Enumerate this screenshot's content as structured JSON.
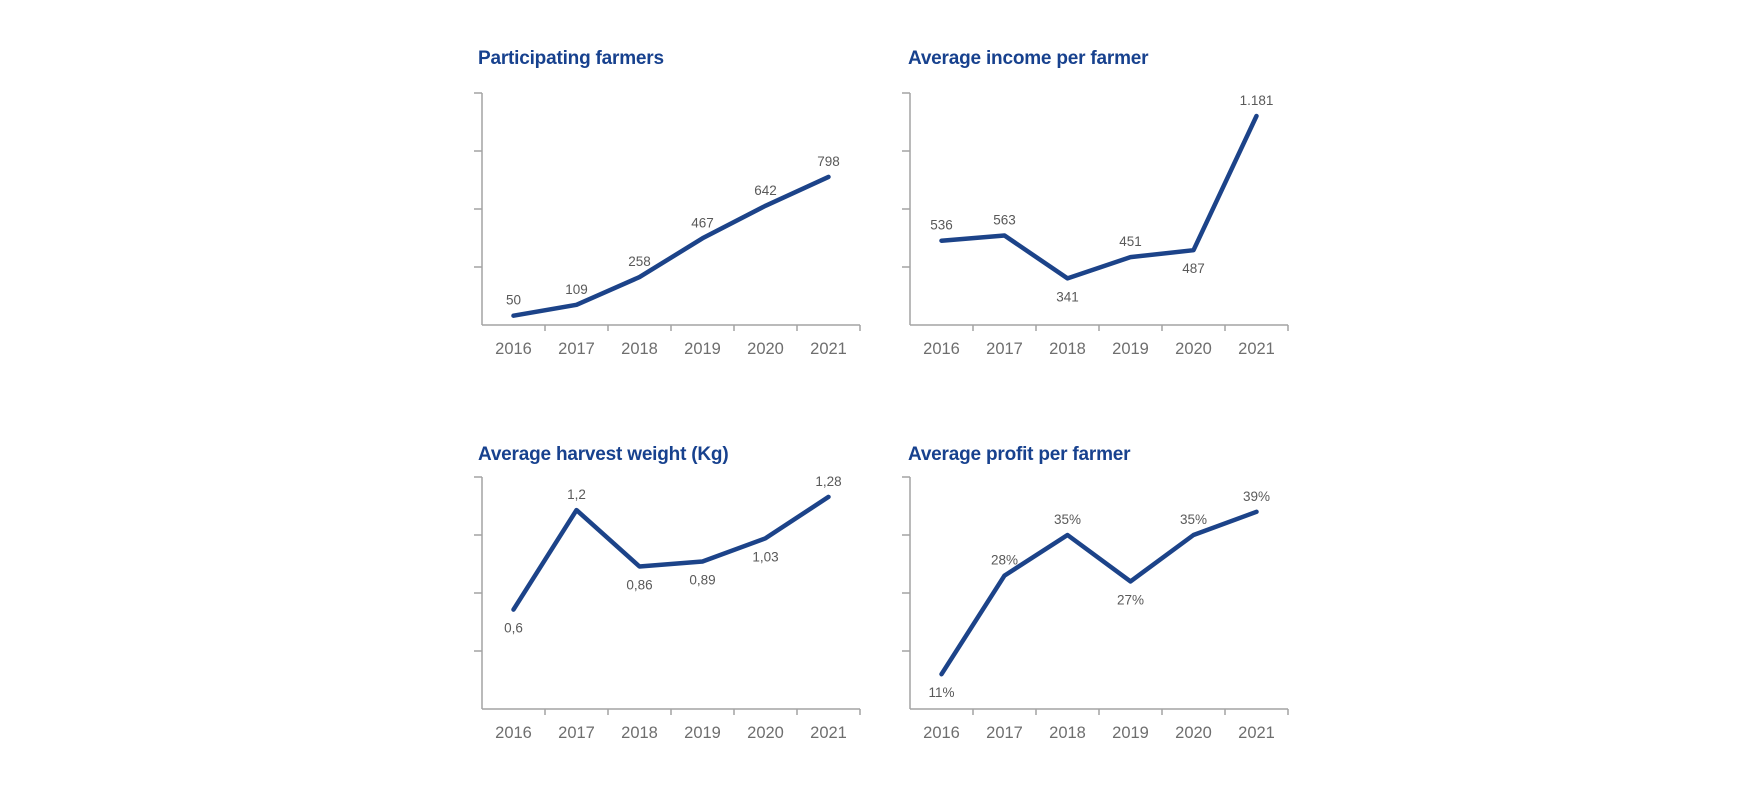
{
  "page": {
    "background_color": "#ffffff"
  },
  "colors": {
    "title": "#17418E",
    "line": "#1C4389",
    "data_label": "#595959",
    "axis": "#A3A3A3",
    "year_label": "#6E6E6E"
  },
  "chart_data": [
    {
      "id": "participating-farmers",
      "type": "line",
      "title": "Participating farmers",
      "categories": [
        "2016",
        "2017",
        "2018",
        "2019",
        "2020",
        "2021"
      ],
      "values": [
        50,
        109,
        258,
        467,
        642,
        798
      ],
      "value_labels": [
        "50",
        "109",
        "258",
        "467",
        "642",
        "798"
      ],
      "label_positions": [
        "above",
        "above",
        "above",
        "above",
        "above",
        "above"
      ],
      "xlabel": "",
      "ylabel": "",
      "ylim": [
        0,
        1250
      ],
      "grid": false,
      "legend": "none",
      "y_tick_labels_shown": false
    },
    {
      "id": "average-income-per-farmer",
      "type": "line",
      "title": "Average income per farmer",
      "categories": [
        "2016",
        "2017",
        "2018",
        "2019",
        "2020",
        "2021"
      ],
      "values": [
        536,
        563,
        341,
        451,
        487,
        1181
      ],
      "value_labels": [
        "536",
        "563",
        "341",
        "451",
        "487",
        "1.181"
      ],
      "label_positions": [
        "above",
        "above",
        "below",
        "above",
        "below",
        "above"
      ],
      "xlabel": "",
      "ylabel": "",
      "ylim": [
        100,
        1300
      ],
      "grid": false,
      "legend": "none",
      "y_tick_labels_shown": false
    },
    {
      "id": "average-harvest-weight-kg",
      "type": "line",
      "title": "Average harvest weight (Kg)",
      "categories": [
        "2016",
        "2017",
        "2018",
        "2019",
        "2020",
        "2021"
      ],
      "values": [
        0.6,
        1.2,
        0.86,
        0.89,
        1.03,
        1.28
      ],
      "value_labels": [
        "0,6",
        "1,2",
        "0,86",
        "0,89",
        "1,03",
        "1,28"
      ],
      "label_positions": [
        "below",
        "above",
        "below",
        "below",
        "below",
        "above"
      ],
      "xlabel": "",
      "ylabel": "",
      "ylim": [
        0,
        1.4
      ],
      "grid": false,
      "legend": "none",
      "y_tick_labels_shown": false
    },
    {
      "id": "average-profit-per-farmer",
      "type": "line",
      "title": "Average profit per farmer",
      "categories": [
        "2016",
        "2017",
        "2018",
        "2019",
        "2020",
        "2021"
      ],
      "values": [
        11,
        28,
        35,
        27,
        35,
        39
      ],
      "value_labels": [
        "11%",
        "28%",
        "35%",
        "27%",
        "35%",
        "39%"
      ],
      "label_positions": [
        "below",
        "above",
        "above",
        "below",
        "above",
        "above"
      ],
      "xlabel": "",
      "ylabel": "",
      "ylim": [
        5,
        45
      ],
      "grid": false,
      "legend": "none",
      "y_tick_labels_shown": false
    }
  ]
}
